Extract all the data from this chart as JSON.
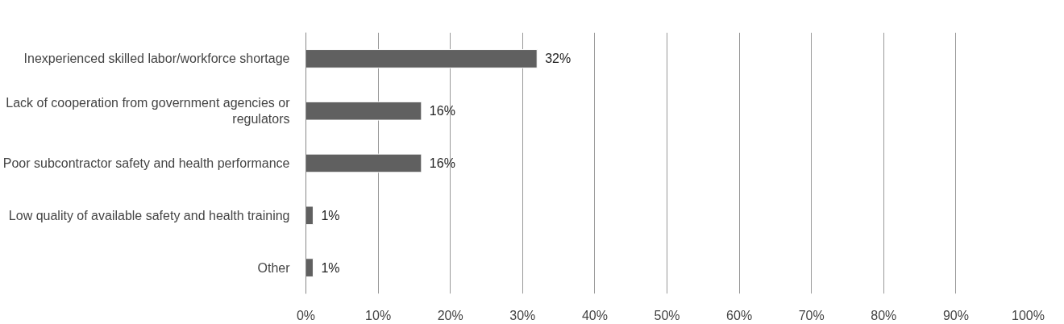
{
  "chart_data": {
    "type": "bar",
    "orientation": "horizontal",
    "categories": [
      "Inexperienced skilled labor/workforce shortage",
      "Lack of cooperation from government agencies or regulators",
      "Poor subcontractor safety and health performance",
      "Low quality of available safety and health training",
      "Other"
    ],
    "values": [
      32,
      16,
      16,
      1,
      1
    ],
    "value_labels": [
      "32%",
      "16%",
      "16%",
      "1%",
      "1%"
    ],
    "color": "#606060",
    "xlim": [
      0,
      100
    ],
    "xticks": [
      {
        "value": 0,
        "label": "0%"
      },
      {
        "value": 10,
        "label": "10%"
      },
      {
        "value": 20,
        "label": "20%"
      },
      {
        "value": 30,
        "label": "30%"
      },
      {
        "value": 40,
        "label": "40%"
      },
      {
        "value": 50,
        "label": "50%"
      },
      {
        "value": 60,
        "label": "60%"
      },
      {
        "value": 70,
        "label": "70%"
      },
      {
        "value": 80,
        "label": "80%"
      },
      {
        "value": 90,
        "label": "90%"
      },
      {
        "value": 100,
        "label": "100%"
      }
    ],
    "grid": "x"
  }
}
